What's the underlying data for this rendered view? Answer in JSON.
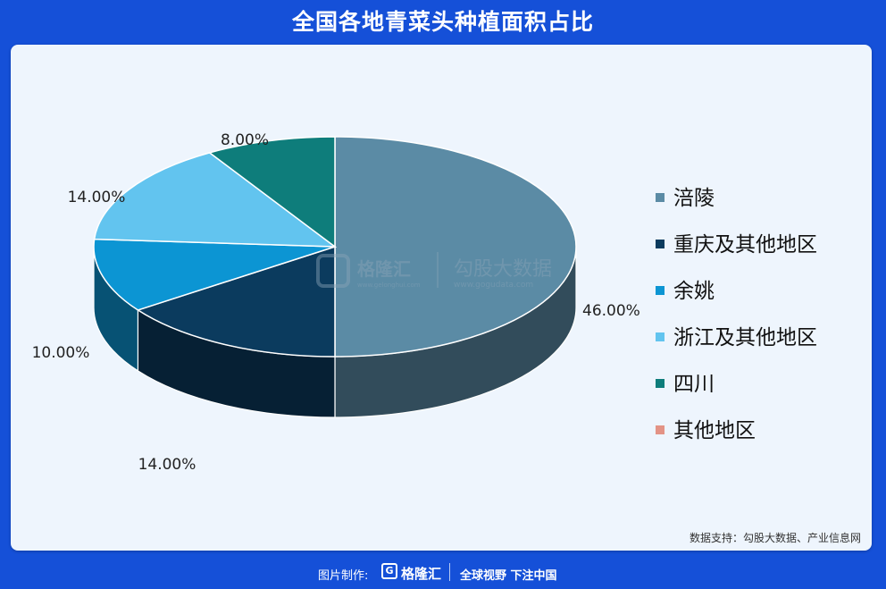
{
  "header": {
    "title": "全国各地青菜头种植面积占比"
  },
  "chart_data": {
    "type": "pie",
    "title": "",
    "slices": [
      {
        "name": "涪陵",
        "value": 46.0,
        "label": "46.00%",
        "color": "#5b8ba5"
      },
      {
        "name": "重庆及其他地区",
        "value": 14.0,
        "label": "14.00%",
        "color": "#0b3b5e"
      },
      {
        "name": "余姚",
        "value": 10.0,
        "label": "10.00%",
        "color": "#0c95d3"
      },
      {
        "name": "浙江及其他地区",
        "value": 14.0,
        "label": "14.00%",
        "color": "#62c4ef"
      },
      {
        "name": "四川",
        "value": 8.0,
        "label": "8.00%",
        "color": "#0e7d7b"
      },
      {
        "name": "其他地区",
        "value": 0,
        "label": "",
        "color": "#e39386"
      }
    ],
    "legend_position": "right",
    "start_angle": "12 o'clock, clockwise",
    "style": "3d"
  },
  "watermark": {
    "brand_cn": "格隆汇",
    "brand_url": "www.gelonghui.com",
    "data_cn": "勾股大数据",
    "data_url": "www.gogudata.com"
  },
  "source_note": "数据支持：勾股大数据、产业信息网",
  "footer": {
    "made_by": "图片制作:",
    "logo_mark": "G",
    "logo_text": "格隆汇",
    "slogan": "全球视野 下注中国"
  }
}
